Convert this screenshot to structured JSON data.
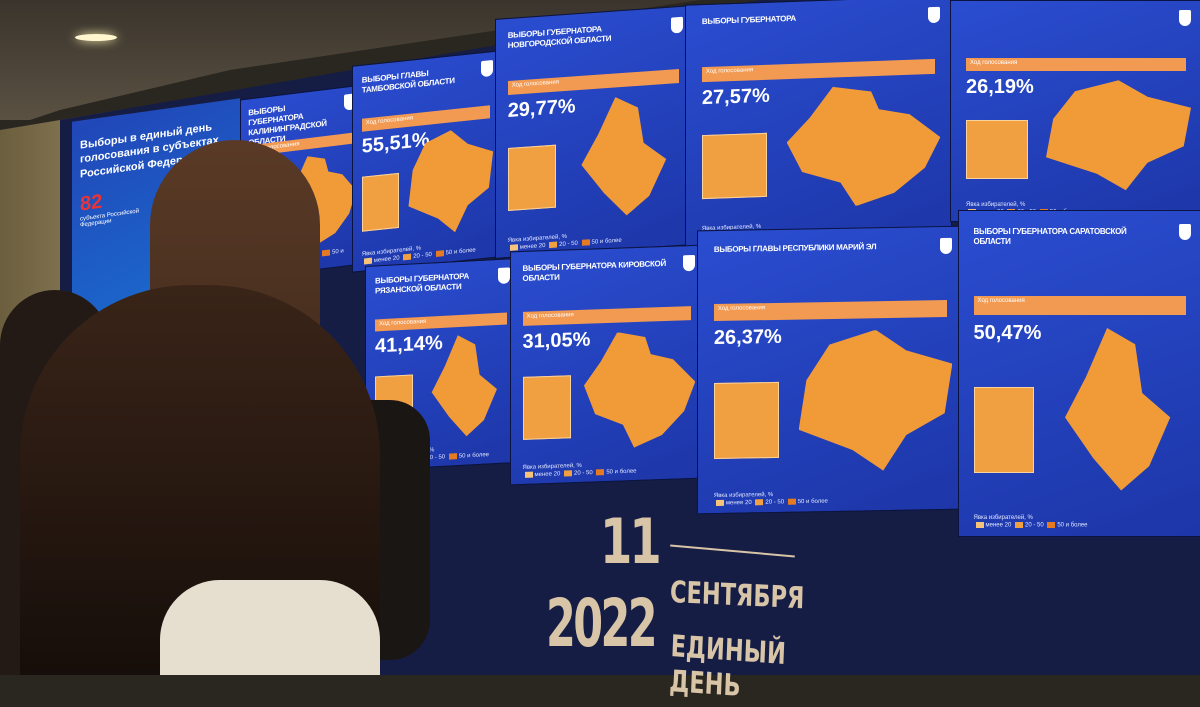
{
  "intro": {
    "title": "Выборы в единый день голосования в субъектах Российской Федерации",
    "count": "82",
    "count_label": "субъекта Российской Федерации"
  },
  "legend": {
    "title": "Явка избирателей, %",
    "low": "менее 20",
    "mid": "20 - 50",
    "high": "50 и более"
  },
  "bar_label": "Ход голосования",
  "panels": [
    {
      "title": "Выборы губернатора Калининградской области",
      "turnout": ""
    },
    {
      "title": "Выборы главы Тамбовской области",
      "turnout": "55,51%"
    },
    {
      "title": "Выборы губернатора Новгородской области",
      "turnout": "29,77%"
    },
    {
      "title": "Выборы губернатора",
      "turnout": "27,57%"
    },
    {
      "title": "",
      "turnout": "26,19%"
    },
    {
      "title": "Выборы губернатора Рязанской области",
      "turnout": "41,14%"
    },
    {
      "title": "Выборы губернатора Кировской области",
      "turnout": "31,05%"
    },
    {
      "title": "Выборы главы Республики Марий Эл",
      "turnout": "26,37%"
    },
    {
      "title": "Выборы губернатора Саратовской области",
      "turnout": "50,47%"
    }
  ],
  "banner": {
    "day": "11",
    "month": "сентября",
    "year": "2022",
    "caption": "Единый день"
  },
  "colors": {
    "panel": "#2340b8",
    "map": "#f19b38",
    "bar": "#f29a52",
    "banner_text": "#d8c4a6"
  }
}
